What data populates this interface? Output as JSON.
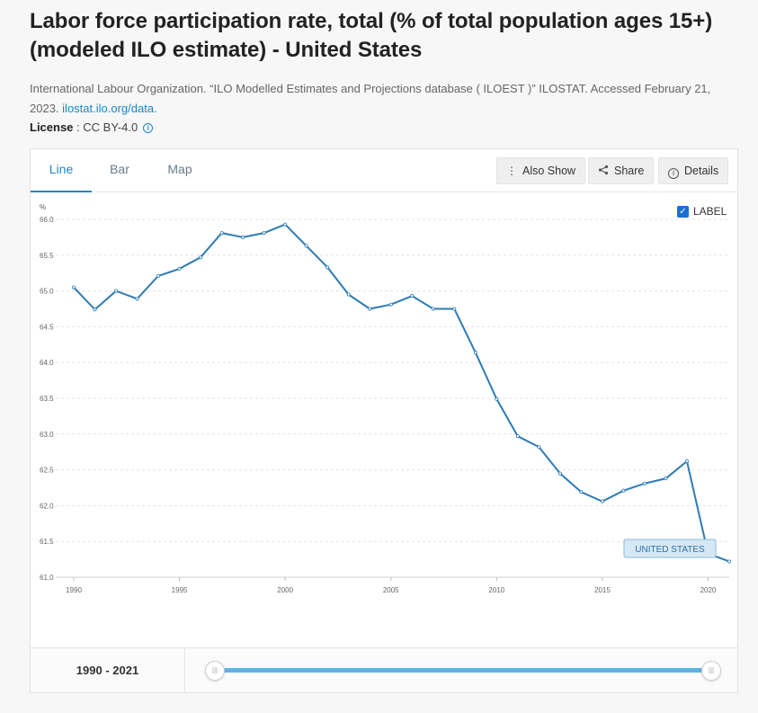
{
  "header": {
    "title": "Labor force participation rate, total (% of total population ages 15+) (modeled ILO estimate) - United States",
    "source_text": "International Labour Organization. “ILO Modelled Estimates and Projections database ( ILOEST )” ILOSTAT. Accessed February 21, 2023.",
    "source_link": "ilostat.ilo.org/data.",
    "license_label": "License",
    "license_value": "CC BY-4.0"
  },
  "tabs": [
    {
      "label": "Line",
      "active": true
    },
    {
      "label": "Bar",
      "active": false
    },
    {
      "label": "Map",
      "active": false
    }
  ],
  "toolbar": {
    "also_show": "Also Show",
    "share": "Share",
    "details": "Details"
  },
  "label_toggle": {
    "text": "LABEL",
    "checked": true
  },
  "range": {
    "text": "1990 - 2021"
  },
  "colors": {
    "line": "#2e7bb5",
    "accent": "#1b87c9",
    "slider": "#5db3e4"
  },
  "chart_data": {
    "type": "line",
    "ylabel": "%",
    "ylim": [
      61.0,
      66.0
    ],
    "yticks": [
      61.0,
      61.5,
      62.0,
      62.5,
      63.0,
      63.5,
      64.0,
      64.5,
      65.0,
      65.5,
      66.0
    ],
    "xlim": [
      1990,
      2021
    ],
    "xticks": [
      1990,
      1995,
      2000,
      2005,
      2010,
      2015,
      2020
    ],
    "grid": true,
    "series": [
      {
        "name": "UNITED STATES",
        "x": [
          1990,
          1991,
          1992,
          1993,
          1994,
          1995,
          1996,
          1997,
          1998,
          1999,
          2000,
          2001,
          2002,
          2003,
          2004,
          2005,
          2006,
          2007,
          2008,
          2009,
          2010,
          2011,
          2012,
          2013,
          2014,
          2015,
          2016,
          2017,
          2018,
          2019,
          2020,
          2021
        ],
        "values": [
          65.05,
          64.74,
          65.0,
          64.89,
          65.21,
          65.31,
          65.47,
          65.81,
          65.75,
          65.81,
          65.93,
          65.63,
          65.33,
          64.95,
          64.75,
          64.81,
          64.93,
          64.75,
          64.75,
          64.14,
          63.49,
          62.97,
          62.82,
          62.45,
          62.19,
          62.06,
          62.21,
          62.31,
          62.38,
          62.62,
          61.33,
          61.22
        ]
      }
    ]
  }
}
